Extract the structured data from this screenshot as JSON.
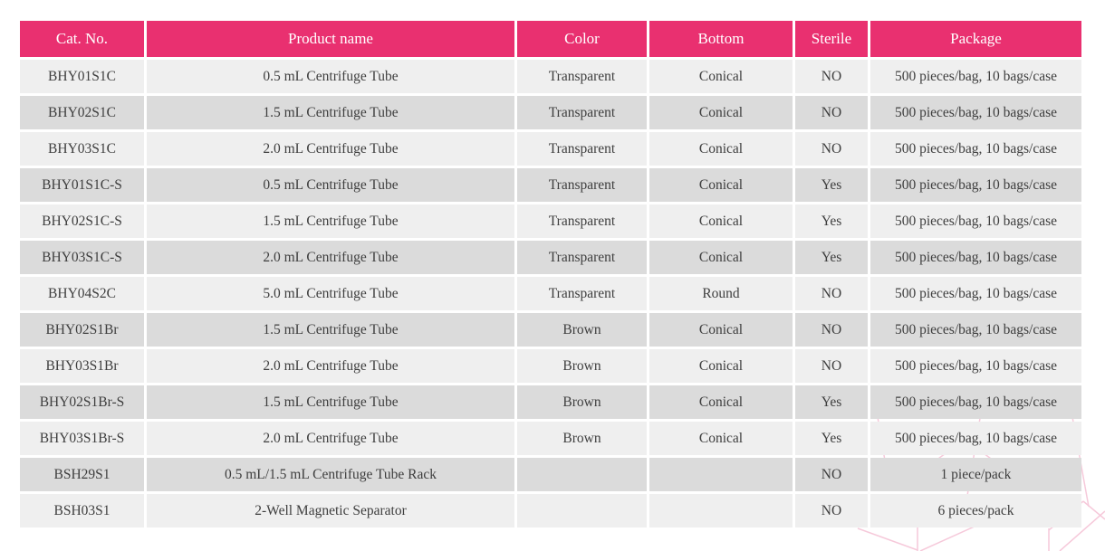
{
  "table": {
    "columns": [
      {
        "key": "cat_no",
        "label": "Cat. No."
      },
      {
        "key": "product_name",
        "label": "Product name"
      },
      {
        "key": "color",
        "label": "Color"
      },
      {
        "key": "bottom",
        "label": "Bottom"
      },
      {
        "key": "sterile",
        "label": "Sterile"
      },
      {
        "key": "package",
        "label": "Package"
      }
    ],
    "rows": [
      {
        "cat_no": "BHY01S1C",
        "product_name": "0.5 mL Centrifuge Tube",
        "color": "Transparent",
        "bottom": "Conical",
        "sterile": "NO",
        "package": "500 pieces/bag, 10 bags/case"
      },
      {
        "cat_no": "BHY02S1C",
        "product_name": "1.5 mL Centrifuge Tube",
        "color": "Transparent",
        "bottom": "Conical",
        "sterile": "NO",
        "package": "500 pieces/bag, 10 bags/case"
      },
      {
        "cat_no": "BHY03S1C",
        "product_name": "2.0 mL Centrifuge Tube",
        "color": "Transparent",
        "bottom": "Conical",
        "sterile": "NO",
        "package": "500 pieces/bag, 10 bags/case"
      },
      {
        "cat_no": "BHY01S1C-S",
        "product_name": "0.5 mL Centrifuge Tube",
        "color": "Transparent",
        "bottom": "Conical",
        "sterile": "Yes",
        "package": "500 pieces/bag, 10 bags/case"
      },
      {
        "cat_no": "BHY02S1C-S",
        "product_name": "1.5 mL Centrifuge Tube",
        "color": "Transparent",
        "bottom": "Conical",
        "sterile": "Yes",
        "package": "500 pieces/bag, 10 bags/case"
      },
      {
        "cat_no": "BHY03S1C-S",
        "product_name": "2.0 mL Centrifuge Tube",
        "color": "Transparent",
        "bottom": "Conical",
        "sterile": "Yes",
        "package": "500 pieces/bag, 10 bags/case"
      },
      {
        "cat_no": "BHY04S2C",
        "product_name": "5.0 mL Centrifuge Tube",
        "color": "Transparent",
        "bottom": "Round",
        "sterile": "NO",
        "package": "500 pieces/bag, 10 bags/case"
      },
      {
        "cat_no": "BHY02S1Br",
        "product_name": "1.5 mL Centrifuge Tube",
        "color": "Brown",
        "bottom": "Conical",
        "sterile": "NO",
        "package": "500 pieces/bag, 10 bags/case"
      },
      {
        "cat_no": "BHY03S1Br",
        "product_name": "2.0 mL Centrifuge Tube",
        "color": "Brown",
        "bottom": "Conical",
        "sterile": "NO",
        "package": "500 pieces/bag, 10 bags/case"
      },
      {
        "cat_no": "BHY02S1Br-S",
        "product_name": "1.5 mL Centrifuge Tube",
        "color": "Brown",
        "bottom": "Conical",
        "sterile": "Yes",
        "package": "500 pieces/bag, 10 bags/case"
      },
      {
        "cat_no": "BHY03S1Br-S",
        "product_name": "2.0 mL Centrifuge Tube",
        "color": "Brown",
        "bottom": "Conical",
        "sterile": "Yes",
        "package": "500 pieces/bag, 10 bags/case"
      },
      {
        "cat_no": "BSH29S1",
        "product_name": "0.5 mL/1.5 mL Centrifuge Tube Rack",
        "color": "",
        "bottom": "",
        "sterile": "NO",
        "package": "1 piece/pack"
      },
      {
        "cat_no": "BSH03S1",
        "product_name": "2-Well Magnetic Separator",
        "color": "",
        "bottom": "",
        "sterile": "NO",
        "package": "6 pieces/pack"
      }
    ]
  },
  "colors": {
    "header_bg": "#e93070",
    "header_text": "#ffffff",
    "row_light": "#efefef",
    "row_dark": "#dbdbdb",
    "cell_text": "#3e3e3e",
    "watermark_line": "#f6c7d9"
  }
}
